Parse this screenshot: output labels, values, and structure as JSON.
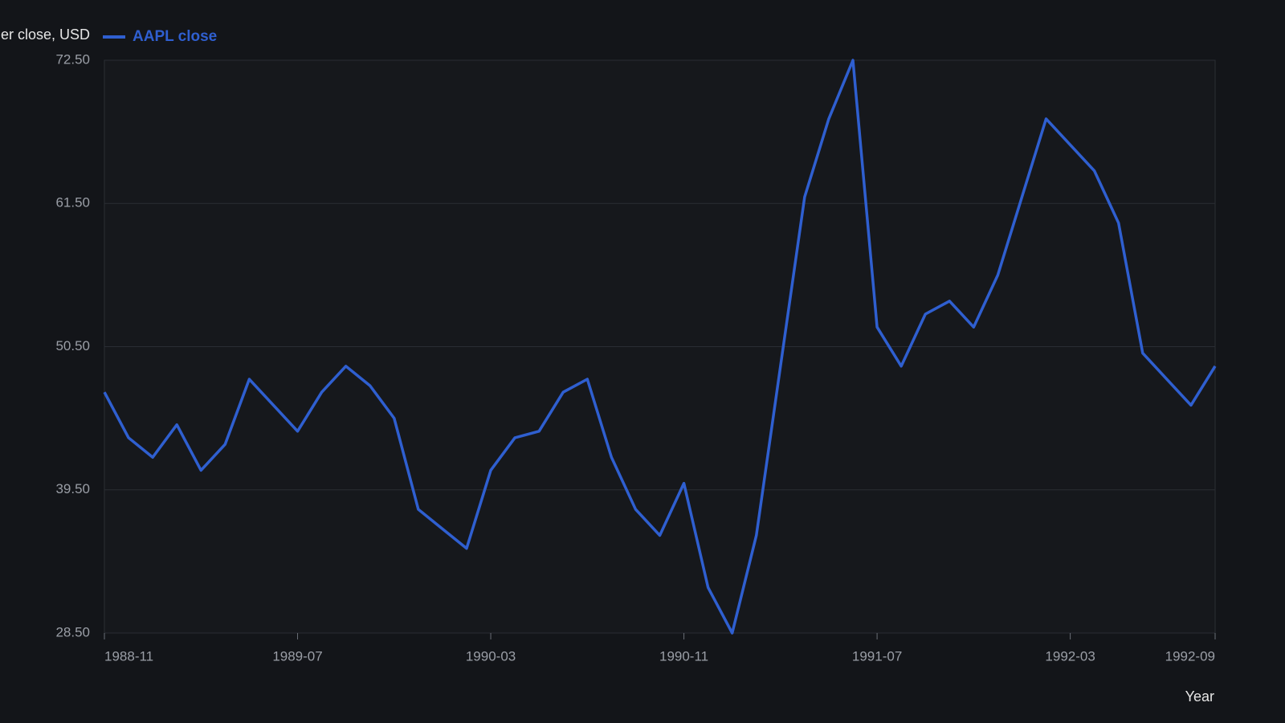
{
  "chart_data": {
    "type": "line",
    "ylabel": "er close, USD",
    "xlabel": "Year",
    "x": [
      "1988-11",
      "1988-12",
      "1989-01",
      "1989-02",
      "1989-03",
      "1989-04",
      "1989-05",
      "1989-06",
      "1989-07",
      "1989-08",
      "1989-09",
      "1989-10",
      "1989-11",
      "1989-12",
      "1990-01",
      "1990-02",
      "1990-03",
      "1990-04",
      "1990-05",
      "1990-06",
      "1990-07",
      "1990-08",
      "1990-09",
      "1990-10",
      "1990-11",
      "1990-12",
      "1991-01",
      "1991-02",
      "1991-03",
      "1991-04",
      "1991-05",
      "1991-06",
      "1991-07",
      "1991-08",
      "1991-09",
      "1991-10",
      "1991-11",
      "1991-12",
      "1992-01",
      "1992-02",
      "1992-03",
      "1992-04",
      "1992-05",
      "1992-06",
      "1992-07",
      "1992-08",
      "1992-09"
    ],
    "series": [
      {
        "name": "AAPL close",
        "color": "#2f5fd0",
        "values": [
          47.0,
          43.5,
          42.0,
          44.5,
          41.0,
          43.0,
          48.0,
          46.0,
          44.0,
          47.0,
          49.0,
          47.5,
          45.0,
          38.0,
          36.5,
          35.0,
          41.0,
          43.5,
          44.0,
          47.0,
          48.0,
          42.0,
          38.0,
          36.0,
          40.0,
          32.0,
          28.5,
          36.0,
          49.0,
          62.0,
          68.0,
          72.5,
          52.0,
          49.0,
          53.0,
          54.0,
          52.0,
          56.0,
          62.0,
          68.0,
          66.0,
          64.0,
          60.0,
          50.0,
          48.0,
          46.0,
          49.0
        ]
      }
    ],
    "xticks": [
      "1988-11",
      "1989-07",
      "1990-03",
      "1990-11",
      "1991-07",
      "1992-03",
      "1992-09"
    ],
    "ylim": [
      28.5,
      72.5
    ],
    "yticks": [
      {
        "value": 28.5,
        "label": "28.50"
      },
      {
        "value": 39.5,
        "label": "39.50"
      },
      {
        "value": 50.5,
        "label": "50.50"
      },
      {
        "value": 61.5,
        "label": "61.50"
      },
      {
        "value": 72.5,
        "label": "72.50"
      }
    ],
    "grid": true
  }
}
